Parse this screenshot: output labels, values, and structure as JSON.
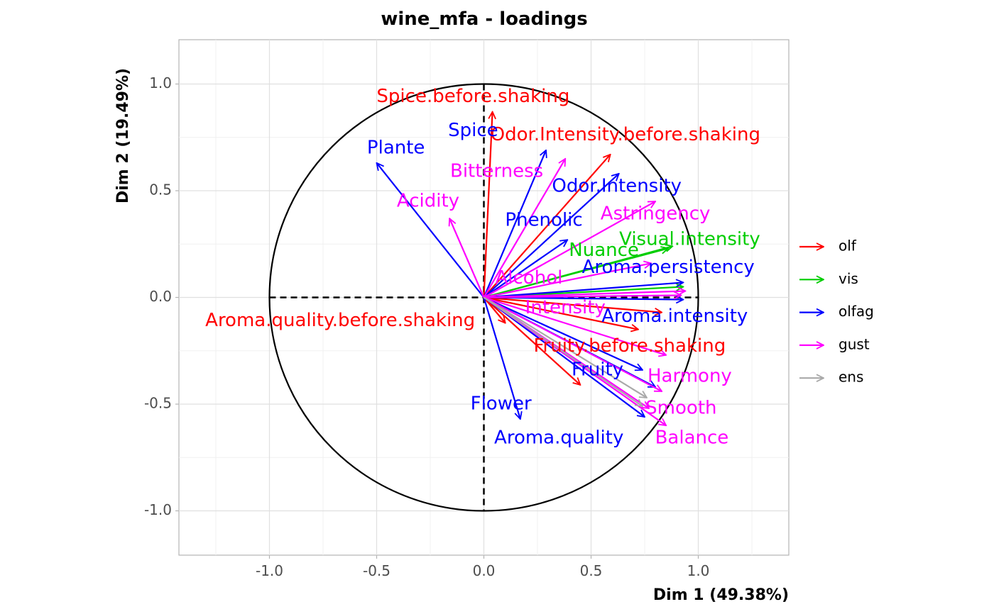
{
  "chart_data": {
    "type": "scatter",
    "title": "wine_mfa - loadings",
    "xlabel": "Dim 1 (49.38%)",
    "ylabel": "Dim 2 (19.49%)",
    "xlim": [
      -1.42,
      1.42
    ],
    "ylim": [
      -1.21,
      1.21
    ],
    "x_ticks": [
      -1.0,
      -0.5,
      0.0,
      0.5,
      1.0
    ],
    "x_tick_labels": [
      "-1.0",
      "-0.5",
      "0.0",
      "0.5",
      "1.0"
    ],
    "y_ticks": [
      -1.0,
      -0.5,
      0.0,
      0.5,
      1.0
    ],
    "y_tick_labels": [
      "-1.0",
      "-0.5",
      "0.0",
      "0.5",
      "1.0"
    ],
    "grid": true,
    "unit_circle": true,
    "legend_position": "right",
    "groups": [
      {
        "name": "olf",
        "color": "#FF0000"
      },
      {
        "name": "vis",
        "color": "#00CD00"
      },
      {
        "name": "olfag",
        "color": "#0000FF"
      },
      {
        "name": "gust",
        "color": "#FF00FF"
      },
      {
        "name": "ens",
        "color": "#A9A9A9"
      }
    ],
    "vectors": [
      {
        "group": "olf",
        "x": 0.04,
        "y": 0.87
      },
      {
        "group": "olf",
        "x": 0.59,
        "y": 0.67
      },
      {
        "group": "olf",
        "x": 0.83,
        "y": -0.07
      },
      {
        "group": "olf",
        "x": 0.72,
        "y": -0.15
      },
      {
        "group": "olf",
        "x": 0.45,
        "y": -0.41
      },
      {
        "group": "olf",
        "x": 0.1,
        "y": -0.12
      },
      {
        "group": "vis",
        "x": 0.88,
        "y": 0.24
      },
      {
        "group": "vis",
        "x": 0.86,
        "y": 0.23
      },
      {
        "group": "vis",
        "x": 0.93,
        "y": 0.05
      },
      {
        "group": "olfag",
        "x": -0.5,
        "y": 0.63
      },
      {
        "group": "olfag",
        "x": 0.29,
        "y": 0.69
      },
      {
        "group": "olfag",
        "x": 0.63,
        "y": 0.58
      },
      {
        "group": "olfag",
        "x": 0.39,
        "y": 0.27
      },
      {
        "group": "olfag",
        "x": 0.93,
        "y": 0.07
      },
      {
        "group": "olfag",
        "x": 0.93,
        "y": -0.01
      },
      {
        "group": "olfag",
        "x": 0.74,
        "y": -0.34
      },
      {
        "group": "olfag",
        "x": 0.8,
        "y": -0.42
      },
      {
        "group": "olfag",
        "x": 0.75,
        "y": -0.56
      },
      {
        "group": "olfag",
        "x": 0.17,
        "y": -0.57
      },
      {
        "group": "gust",
        "x": -0.16,
        "y": 0.37
      },
      {
        "group": "gust",
        "x": 0.38,
        "y": 0.65
      },
      {
        "group": "gust",
        "x": 0.8,
        "y": 0.45
      },
      {
        "group": "gust",
        "x": 0.78,
        "y": 0.16
      },
      {
        "group": "gust",
        "x": 0.94,
        "y": 0.03
      },
      {
        "group": "gust",
        "x": 0.92,
        "y": 0.01
      },
      {
        "group": "gust",
        "x": 0.85,
        "y": -0.27
      },
      {
        "group": "gust",
        "x": 0.83,
        "y": -0.44
      },
      {
        "group": "gust",
        "x": 0.85,
        "y": -0.6
      },
      {
        "group": "gust",
        "x": 0.77,
        "y": -0.52
      },
      {
        "group": "ens",
        "x": 0.76,
        "y": -0.47
      },
      {
        "group": "ens",
        "x": 0.74,
        "y": -0.51
      }
    ],
    "labels": [
      {
        "text": "Spice.before.shaking",
        "group": "olf",
        "x": -0.05,
        "y": 0.94
      },
      {
        "text": "Odor.Intensity.before.shaking",
        "group": "olf",
        "x": 0.66,
        "y": 0.76
      },
      {
        "text": "Aroma.quality.before.shaking",
        "group": "olf",
        "x": -0.67,
        "y": -0.11
      },
      {
        "text": "Fruity.before.shaking",
        "group": "olf",
        "x": 0.68,
        "y": -0.23
      },
      {
        "text": "Visual.intensity",
        "group": "vis",
        "x": 0.96,
        "y": 0.27
      },
      {
        "text": "Nuance",
        "group": "vis",
        "x": 0.56,
        "y": 0.22
      },
      {
        "text": "Plante",
        "group": "olfag",
        "x": -0.41,
        "y": 0.7
      },
      {
        "text": "Spice",
        "group": "olfag",
        "x": -0.05,
        "y": 0.78
      },
      {
        "text": "Odor.Intensity",
        "group": "olfag",
        "x": 0.62,
        "y": 0.52
      },
      {
        "text": "Phenolic",
        "group": "olfag",
        "x": 0.28,
        "y": 0.36
      },
      {
        "text": "Aroma.persistency",
        "group": "olfag",
        "x": 0.86,
        "y": 0.14
      },
      {
        "text": "Aroma.intensity",
        "group": "olfag",
        "x": 0.89,
        "y": -0.09
      },
      {
        "text": "Fruity",
        "group": "olfag",
        "x": 0.53,
        "y": -0.34
      },
      {
        "text": "Flower",
        "group": "olfag",
        "x": 0.08,
        "y": -0.5
      },
      {
        "text": "Aroma.quality",
        "group": "olfag",
        "x": 0.35,
        "y": -0.66
      },
      {
        "text": "Bitterness",
        "group": "gust",
        "x": 0.06,
        "y": 0.59
      },
      {
        "text": "Acidity",
        "group": "gust",
        "x": -0.26,
        "y": 0.45
      },
      {
        "text": "Astringency",
        "group": "gust",
        "x": 0.8,
        "y": 0.39
      },
      {
        "text": "Alcohol",
        "group": "gust",
        "x": 0.21,
        "y": 0.09
      },
      {
        "text": "Intensity",
        "group": "gust",
        "x": 0.38,
        "y": -0.05
      },
      {
        "text": "Harmony",
        "group": "gust",
        "x": 0.96,
        "y": -0.37
      },
      {
        "text": "Smooth",
        "group": "gust",
        "x": 0.92,
        "y": -0.52
      },
      {
        "text": "Balance",
        "group": "gust",
        "x": 0.97,
        "y": -0.66
      }
    ]
  }
}
